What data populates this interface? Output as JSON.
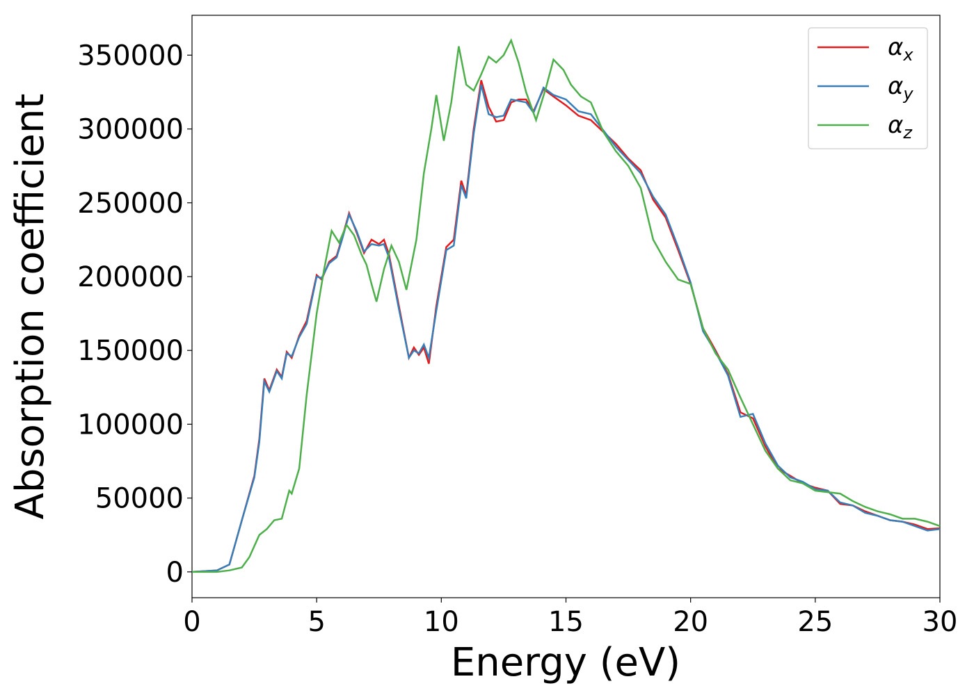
{
  "chart_data": {
    "type": "line",
    "xlabel": "Energy (eV)",
    "ylabel": "Absorption coefficient",
    "xlim": [
      0,
      30
    ],
    "xticks": [
      0,
      5,
      10,
      15,
      20,
      25,
      30
    ],
    "ylim": [
      -17500,
      377000
    ],
    "yticks": [
      0,
      50000,
      100000,
      150000,
      200000,
      250000,
      300000,
      350000
    ],
    "legend": "upper right",
    "series": [
      {
        "name": "αx",
        "color": "#e41a1c",
        "x": [
          0,
          1,
          1.5,
          2,
          2.5,
          2.7,
          2.9,
          3.1,
          3.4,
          3.6,
          3.8,
          4,
          4.3,
          4.6,
          5,
          5.2,
          5.5,
          5.8,
          6,
          6.3,
          6.6,
          6.9,
          7.2,
          7.5,
          7.7,
          7.9,
          8.3,
          8.7,
          8.9,
          9.1,
          9.3,
          9.5,
          9.8,
          10.2,
          10.5,
          10.8,
          11,
          11.3,
          11.6,
          11.9,
          12.2,
          12.5,
          12.8,
          13.1,
          13.4,
          13.7,
          14.1,
          14.5,
          15,
          15.5,
          16,
          16.5,
          17,
          17.5,
          18,
          18.5,
          19,
          19.5,
          20,
          20.5,
          21,
          21.5,
          22,
          22.5,
          23,
          23.5,
          24,
          24.5,
          25,
          25.5,
          26,
          26.5,
          27,
          27.5,
          28,
          28.5,
          29,
          29.5,
          30
        ],
        "values": [
          0,
          1000,
          5000,
          35000,
          65000,
          90000,
          131000,
          123000,
          137000,
          132000,
          149000,
          145000,
          160000,
          170000,
          201000,
          198000,
          210000,
          214000,
          225000,
          243000,
          230000,
          216000,
          225000,
          222000,
          225000,
          215000,
          180000,
          145000,
          152000,
          147000,
          152000,
          141000,
          180000,
          220000,
          225000,
          265000,
          255000,
          300000,
          333000,
          315000,
          305000,
          306000,
          318000,
          320000,
          320000,
          312000,
          327000,
          322000,
          316000,
          309000,
          306000,
          298000,
          290000,
          280000,
          272000,
          252000,
          240000,
          218000,
          195000,
          165000,
          150000,
          134000,
          108000,
          104000,
          85000,
          70000,
          65000,
          60000,
          57000,
          55000,
          46000,
          45000,
          41000,
          38000,
          35000,
          34000,
          32000,
          29000,
          29500
        ]
      },
      {
        "name": "αy",
        "color": "#377eb8",
        "x": [
          0,
          1,
          1.5,
          2,
          2.5,
          2.7,
          2.9,
          3.1,
          3.4,
          3.6,
          3.8,
          4,
          4.3,
          4.6,
          5,
          5.2,
          5.5,
          5.8,
          6,
          6.3,
          6.6,
          6.9,
          7.2,
          7.5,
          7.7,
          7.9,
          8.3,
          8.7,
          8.9,
          9.1,
          9.3,
          9.5,
          9.8,
          10.2,
          10.5,
          10.8,
          11,
          11.3,
          11.6,
          11.9,
          12.2,
          12.5,
          12.8,
          13.1,
          13.4,
          13.7,
          14.1,
          14.5,
          15,
          15.5,
          16,
          16.5,
          17,
          17.5,
          18,
          18.5,
          19,
          19.5,
          20,
          20.5,
          21,
          21.5,
          22,
          22.5,
          23,
          23.5,
          24,
          24.5,
          25,
          25.5,
          26,
          26.5,
          27,
          27.5,
          28,
          28.5,
          29,
          29.5,
          30
        ],
        "values": [
          0,
          1000,
          5000,
          35000,
          64000,
          88000,
          129000,
          122000,
          136000,
          131000,
          148000,
          146000,
          159000,
          168000,
          200000,
          199000,
          209000,
          213000,
          224000,
          242000,
          231000,
          217000,
          222000,
          221000,
          222000,
          213000,
          178000,
          145000,
          150000,
          148000,
          154000,
          145000,
          177000,
          218000,
          221000,
          262000,
          253000,
          297000,
          330000,
          310000,
          308000,
          309000,
          320000,
          319000,
          318000,
          311000,
          328000,
          323000,
          320000,
          312000,
          310000,
          299000,
          288000,
          279000,
          270000,
          254000,
          242000,
          220000,
          196000,
          163000,
          149000,
          133000,
          105000,
          107000,
          87000,
          72000,
          64000,
          61000,
          56000,
          55000,
          47000,
          45000,
          40000,
          38000,
          35000,
          34000,
          31000,
          28000,
          29000
        ]
      },
      {
        "name": "αz",
        "color": "#4daf4a",
        "x": [
          0,
          1,
          1.5,
          2,
          2.3,
          2.7,
          3,
          3.3,
          3.6,
          3.9,
          4,
          4.3,
          4.6,
          5,
          5.3,
          5.6,
          5.9,
          6.2,
          6.5,
          6.8,
          7,
          7.2,
          7.4,
          7.7,
          8,
          8.3,
          8.6,
          9,
          9.3,
          9.6,
          9.8,
          10.1,
          10.4,
          10.7,
          11,
          11.3,
          11.6,
          11.9,
          12.2,
          12.5,
          12.8,
          13.1,
          13.4,
          13.8,
          14.2,
          14.5,
          14.9,
          15.2,
          15.6,
          16,
          16.5,
          17,
          17.5,
          18,
          18.5,
          19,
          19.5,
          20,
          20.5,
          21,
          21.5,
          22,
          22.5,
          23,
          23.5,
          24,
          24.5,
          25,
          25.5,
          26,
          26.5,
          27,
          27.5,
          28,
          28.5,
          29,
          29.5,
          30
        ],
        "values": [
          0,
          0,
          1000,
          3000,
          10000,
          25000,
          29000,
          35000,
          36000,
          55000,
          53000,
          70000,
          120000,
          175000,
          205000,
          231000,
          223000,
          235000,
          228000,
          215000,
          208000,
          195000,
          183000,
          205000,
          221000,
          210000,
          191000,
          225000,
          270000,
          300000,
          323000,
          292000,
          318000,
          356000,
          330000,
          326000,
          337000,
          349000,
          345000,
          350000,
          360000,
          345000,
          325000,
          306000,
          328000,
          347000,
          340000,
          330000,
          322000,
          318000,
          298000,
          285000,
          275000,
          260000,
          225000,
          210000,
          198000,
          195000,
          165000,
          148000,
          137000,
          118000,
          100000,
          82000,
          70000,
          62000,
          60000,
          55000,
          54000,
          53000,
          48000,
          44000,
          41000,
          39000,
          36000,
          36000,
          34000,
          31000
        ]
      }
    ]
  }
}
